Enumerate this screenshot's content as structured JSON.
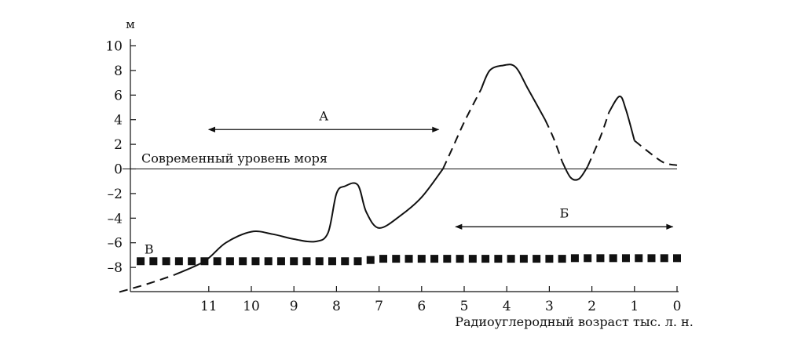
{
  "chart_data": {
    "type": "line",
    "title": "",
    "xlabel": "Радиоуглеродный возраст тыс. л. н.",
    "ylabel": "м",
    "x_axis": {
      "reversed": true,
      "xlim": [
        13.1,
        0
      ],
      "ticks": [
        11,
        10,
        9,
        8,
        7,
        6,
        5,
        4,
        3,
        2,
        1,
        0
      ],
      "tick_labels": [
        "11",
        "10",
        "9",
        "8",
        "7",
        "6",
        "5",
        "4",
        "3",
        "2",
        "1",
        "0"
      ]
    },
    "y_axis": {
      "ylim": [
        -10,
        10
      ],
      "ticks": [
        10,
        8,
        6,
        4,
        2,
        0,
        -2,
        -4,
        -6,
        -8
      ],
      "tick_labels": [
        "10",
        "8",
        "6",
        "4",
        "2",
        "0",
        "–2",
        "–4",
        "–6",
        "–8"
      ]
    },
    "grid": false,
    "reference_line": {
      "label": "Современный уровень моря",
      "y": 0,
      "x_range": [
        13.1,
        0
      ]
    },
    "series": [
      {
        "style": "solid-dashed",
        "points": [
          {
            "x": 13.1,
            "y": -10.0,
            "style": "dashed"
          },
          {
            "x": 12.4,
            "y": -9.3,
            "style": "dashed"
          },
          {
            "x": 11.8,
            "y": -8.6,
            "style": "dashed"
          },
          {
            "x": 11.1,
            "y": -7.5,
            "style": "solid"
          },
          {
            "x": 10.6,
            "y": -6.0,
            "style": "solid"
          },
          {
            "x": 10.0,
            "y": -5.1,
            "style": "solid"
          },
          {
            "x": 9.5,
            "y": -5.3,
            "style": "solid"
          },
          {
            "x": 9.0,
            "y": -5.7,
            "style": "solid"
          },
          {
            "x": 8.5,
            "y": -5.9,
            "style": "solid"
          },
          {
            "x": 8.2,
            "y": -5.2,
            "style": "solid"
          },
          {
            "x": 8.0,
            "y": -2.0,
            "style": "solid"
          },
          {
            "x": 7.8,
            "y": -1.4,
            "style": "solid"
          },
          {
            "x": 7.5,
            "y": -1.3,
            "style": "solid"
          },
          {
            "x": 7.3,
            "y": -3.5,
            "style": "solid"
          },
          {
            "x": 7.0,
            "y": -4.8,
            "style": "solid"
          },
          {
            "x": 6.5,
            "y": -3.8,
            "style": "solid"
          },
          {
            "x": 6.0,
            "y": -2.3,
            "style": "solid"
          },
          {
            "x": 5.5,
            "y": 0.0,
            "style": "solid"
          },
          {
            "x": 5.3,
            "y": 1.5,
            "style": "dashed"
          },
          {
            "x": 5.0,
            "y": 3.8,
            "style": "dashed"
          },
          {
            "x": 4.6,
            "y": 6.5,
            "style": "dashed"
          },
          {
            "x": 4.4,
            "y": 8.0,
            "style": "solid"
          },
          {
            "x": 4.1,
            "y": 8.4,
            "style": "solid"
          },
          {
            "x": 3.8,
            "y": 8.3,
            "style": "solid"
          },
          {
            "x": 3.5,
            "y": 6.5,
            "style": "solid"
          },
          {
            "x": 3.1,
            "y": 4.0,
            "style": "solid"
          },
          {
            "x": 2.9,
            "y": 2.5,
            "style": "dashed"
          },
          {
            "x": 2.7,
            "y": 0.6,
            "style": "dashed"
          },
          {
            "x": 2.5,
            "y": -0.7,
            "style": "solid"
          },
          {
            "x": 2.3,
            "y": -0.8,
            "style": "solid"
          },
          {
            "x": 2.1,
            "y": 0.2,
            "style": "solid"
          },
          {
            "x": 1.8,
            "y": 2.6,
            "style": "dashed"
          },
          {
            "x": 1.6,
            "y": 4.6,
            "style": "dashed"
          },
          {
            "x": 1.35,
            "y": 5.9,
            "style": "solid"
          },
          {
            "x": 1.2,
            "y": 4.8,
            "style": "solid"
          },
          {
            "x": 1.0,
            "y": 2.3,
            "style": "solid"
          },
          {
            "x": 0.6,
            "y": 1.2,
            "style": "dashed"
          },
          {
            "x": 0.3,
            "y": 0.5,
            "style": "dashed"
          },
          {
            "x": 0.0,
            "y": 0.3,
            "style": "dashed"
          }
        ]
      },
      {
        "style": "square-markers",
        "label": "В",
        "points": [
          {
            "x": 12.6,
            "y": -7.5
          },
          {
            "x": 12.3,
            "y": -7.5
          },
          {
            "x": 12.0,
            "y": -7.5
          },
          {
            "x": 11.7,
            "y": -7.5
          },
          {
            "x": 11.4,
            "y": -7.5
          },
          {
            "x": 11.1,
            "y": -7.5
          },
          {
            "x": 10.8,
            "y": -7.5
          },
          {
            "x": 10.5,
            "y": -7.5
          },
          {
            "x": 10.2,
            "y": -7.5
          },
          {
            "x": 9.9,
            "y": -7.5
          },
          {
            "x": 9.6,
            "y": -7.5
          },
          {
            "x": 9.3,
            "y": -7.5
          },
          {
            "x": 9.0,
            "y": -7.5
          },
          {
            "x": 8.7,
            "y": -7.5
          },
          {
            "x": 8.4,
            "y": -7.5
          },
          {
            "x": 8.1,
            "y": -7.5
          },
          {
            "x": 7.8,
            "y": -7.5
          },
          {
            "x": 7.5,
            "y": -7.5
          },
          {
            "x": 7.2,
            "y": -7.4
          },
          {
            "x": 6.9,
            "y": -7.3
          },
          {
            "x": 6.6,
            "y": -7.3
          },
          {
            "x": 6.3,
            "y": -7.3
          },
          {
            "x": 6.0,
            "y": -7.3
          },
          {
            "x": 5.7,
            "y": -7.3
          },
          {
            "x": 5.4,
            "y": -7.3
          },
          {
            "x": 5.1,
            "y": -7.3
          },
          {
            "x": 4.8,
            "y": -7.3
          },
          {
            "x": 4.5,
            "y": -7.3
          },
          {
            "x": 4.2,
            "y": -7.3
          },
          {
            "x": 3.9,
            "y": -7.3
          },
          {
            "x": 3.6,
            "y": -7.3
          },
          {
            "x": 3.3,
            "y": -7.3
          },
          {
            "x": 3.0,
            "y": -7.3
          },
          {
            "x": 2.7,
            "y": -7.3
          },
          {
            "x": 2.4,
            "y": -7.25
          },
          {
            "x": 2.1,
            "y": -7.25
          },
          {
            "x": 1.8,
            "y": -7.25
          },
          {
            "x": 1.5,
            "y": -7.25
          },
          {
            "x": 1.2,
            "y": -7.25
          },
          {
            "x": 0.9,
            "y": -7.25
          },
          {
            "x": 0.6,
            "y": -7.25
          },
          {
            "x": 0.3,
            "y": -7.25
          },
          {
            "x": 0.0,
            "y": -7.25
          }
        ]
      }
    ],
    "annotations": [
      {
        "text": "А",
        "type": "double-arrow",
        "x_range": [
          11.0,
          5.6
        ],
        "y": 3.2
      },
      {
        "text": "Б",
        "type": "double-arrow",
        "x_range": [
          5.2,
          0.1
        ],
        "y": -4.7
      },
      {
        "text": "В",
        "type": "label",
        "x": 12.4,
        "y": -6.5
      }
    ],
    "colors": {
      "ink": "#111111"
    }
  }
}
